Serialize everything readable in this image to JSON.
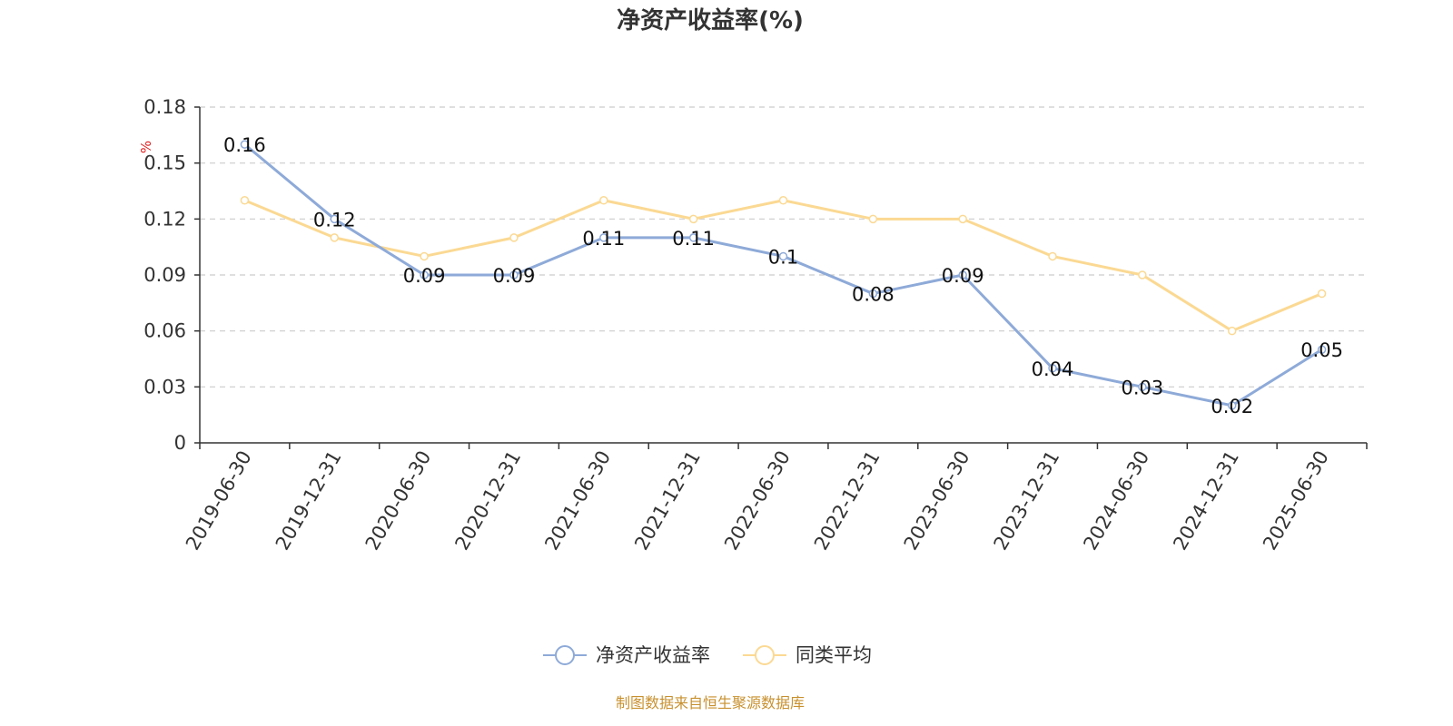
{
  "chart_data": {
    "type": "line",
    "title": "净资产收益率(%)",
    "y_unit": "%",
    "categories": [
      "2019-06-30",
      "2019-12-31",
      "2020-06-30",
      "2020-12-31",
      "2021-06-30",
      "2021-12-31",
      "2022-06-30",
      "2022-12-31",
      "2023-06-30",
      "2023-12-31",
      "2024-06-30",
      "2024-12-31",
      "2025-06-30"
    ],
    "series": [
      {
        "name": "净资产收益率",
        "color": "#8eaad8",
        "values": [
          0.16,
          0.12,
          0.09,
          0.09,
          0.11,
          0.11,
          0.1,
          0.08,
          0.09,
          0.04,
          0.03,
          0.02,
          0.05
        ],
        "labels": [
          "0.16",
          "0.12",
          "0.09",
          "0.09",
          "0.11",
          "0.11",
          "0.1",
          "0.08",
          "0.09",
          "0.04",
          "0.03",
          "0.02",
          "0.05"
        ]
      },
      {
        "name": "同类平均",
        "color": "#fbd993",
        "values": [
          0.13,
          0.11,
          0.1,
          0.11,
          0.13,
          0.12,
          0.13,
          0.12,
          0.12,
          0.1,
          0.09,
          0.06,
          0.08
        ]
      }
    ],
    "ylim": [
      0,
      0.18
    ],
    "yticks": [
      "0",
      "0.03",
      "0.06",
      "0.09",
      "0.12",
      "0.15",
      "0.18"
    ],
    "grid": true,
    "legend_position": "bottom-center"
  },
  "footer": {
    "source": "制图数据来自恒生聚源数据库"
  }
}
